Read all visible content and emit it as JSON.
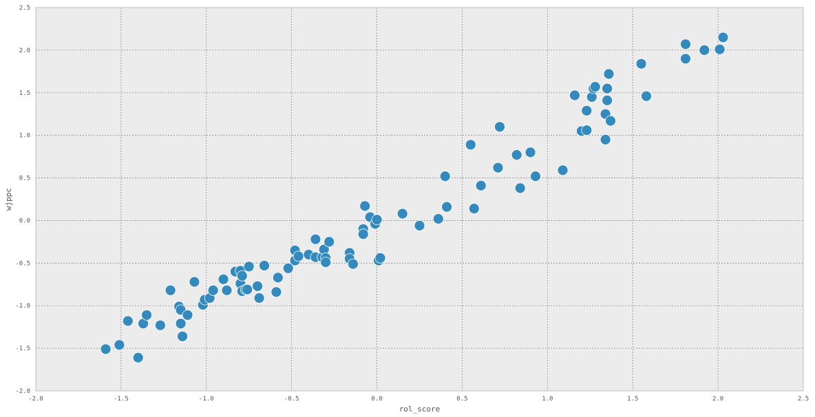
{
  "chart_data": {
    "type": "scatter",
    "xlabel": "rol_score",
    "ylabel": "wjppc",
    "xlim": [
      -2.0,
      2.5
    ],
    "ylim": [
      -2.0,
      2.5
    ],
    "grid": true,
    "xticks": [
      "-2.0",
      "-1.5",
      "-1.0",
      "-0.5",
      "0.0",
      "0.5",
      "1.0",
      "1.5",
      "2.0",
      "2.5"
    ],
    "yticks": [
      "-2.0",
      "-1.5",
      "-1.0",
      "-0.5",
      "0.0",
      "0.5",
      "1.0",
      "1.5",
      "2.0",
      "2.5"
    ],
    "colors": {
      "background": "#ececec",
      "point": "#348abd",
      "point_edge": "#ffffff",
      "grid": "#8c8c8c",
      "frame": "#bcbcbc"
    },
    "points": [
      [
        -1.59,
        -1.51
      ],
      [
        -1.51,
        -1.46
      ],
      [
        -1.46,
        -1.18
      ],
      [
        -1.4,
        -1.61
      ],
      [
        -1.37,
        -1.21
      ],
      [
        -1.35,
        -1.11
      ],
      [
        -1.27,
        -1.23
      ],
      [
        -1.21,
        -0.82
      ],
      [
        -1.16,
        -1.01
      ],
      [
        -1.15,
        -1.05
      ],
      [
        -1.15,
        -1.21
      ],
      [
        -1.14,
        -1.36
      ],
      [
        -1.11,
        -1.11
      ],
      [
        -1.07,
        -0.72
      ],
      [
        -1.02,
        -0.99
      ],
      [
        -1.01,
        -0.93
      ],
      [
        -0.98,
        -0.91
      ],
      [
        -0.96,
        -0.82
      ],
      [
        -0.9,
        -0.69
      ],
      [
        -0.88,
        -0.82
      ],
      [
        -0.83,
        -0.6
      ],
      [
        -0.8,
        -0.59
      ],
      [
        -0.8,
        -0.74
      ],
      [
        -0.79,
        -0.83
      ],
      [
        -0.79,
        -0.65
      ],
      [
        -0.77,
        -0.81
      ],
      [
        -0.76,
        -0.81
      ],
      [
        -0.75,
        -0.54
      ],
      [
        -0.7,
        -0.77
      ],
      [
        -0.69,
        -0.91
      ],
      [
        -0.66,
        -0.53
      ],
      [
        -0.59,
        -0.84
      ],
      [
        -0.58,
        -0.67
      ],
      [
        -0.52,
        -0.56
      ],
      [
        -0.48,
        -0.35
      ],
      [
        -0.48,
        -0.47
      ],
      [
        -0.46,
        -0.42
      ],
      [
        -0.4,
        -0.4
      ],
      [
        -0.36,
        -0.22
      ],
      [
        -0.36,
        -0.43
      ],
      [
        -0.32,
        -0.43
      ],
      [
        -0.31,
        -0.34
      ],
      [
        -0.3,
        -0.44
      ],
      [
        -0.3,
        -0.49
      ],
      [
        -0.28,
        -0.25
      ],
      [
        -0.16,
        -0.38
      ],
      [
        -0.16,
        -0.45
      ],
      [
        -0.14,
        -0.51
      ],
      [
        -0.08,
        -0.1
      ],
      [
        -0.08,
        -0.16
      ],
      [
        -0.07,
        0.17
      ],
      [
        -0.04,
        0.04
      ],
      [
        -0.01,
        -0.04
      ],
      [
        0.0,
        0.01
      ],
      [
        0.01,
        -0.47
      ],
      [
        0.02,
        -0.44
      ],
      [
        0.15,
        0.08
      ],
      [
        0.25,
        -0.06
      ],
      [
        0.36,
        0.02
      ],
      [
        0.4,
        0.52
      ],
      [
        0.41,
        0.16
      ],
      [
        0.55,
        0.89
      ],
      [
        0.57,
        0.14
      ],
      [
        0.61,
        0.41
      ],
      [
        0.71,
        0.62
      ],
      [
        0.72,
        1.1
      ],
      [
        0.82,
        0.77
      ],
      [
        0.84,
        0.38
      ],
      [
        0.9,
        0.8
      ],
      [
        0.93,
        0.52
      ],
      [
        1.09,
        0.59
      ],
      [
        1.16,
        1.47
      ],
      [
        1.2,
        1.05
      ],
      [
        1.23,
        1.29
      ],
      [
        1.23,
        1.06
      ],
      [
        1.26,
        1.45
      ],
      [
        1.27,
        1.55
      ],
      [
        1.28,
        1.57
      ],
      [
        1.34,
        1.25
      ],
      [
        1.34,
        0.95
      ],
      [
        1.35,
        1.41
      ],
      [
        1.35,
        1.55
      ],
      [
        1.36,
        1.72
      ],
      [
        1.37,
        1.17
      ],
      [
        1.55,
        1.84
      ],
      [
        1.58,
        1.46
      ],
      [
        1.81,
        2.07
      ],
      [
        1.81,
        1.9
      ],
      [
        1.92,
        2.0
      ],
      [
        2.01,
        2.01
      ],
      [
        2.03,
        2.15
      ]
    ]
  }
}
